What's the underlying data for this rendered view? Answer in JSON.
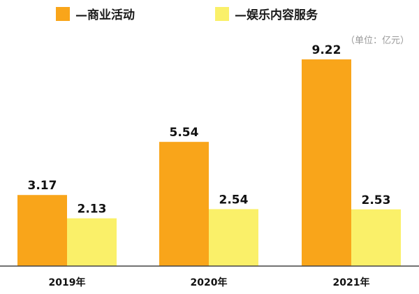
{
  "chart_data": {
    "type": "bar",
    "categories": [
      "2019年",
      "2020年",
      "2021年"
    ],
    "series": [
      {
        "name": "—商业活动",
        "values": [
          3.17,
          5.54,
          9.22
        ],
        "color": "#F9A51A"
      },
      {
        "name": "—娱乐内容服务",
        "values": [
          2.13,
          2.54,
          2.53
        ],
        "color": "#FAF069"
      }
    ],
    "unit": "（单位：亿元）",
    "title": "",
    "xlabel": "",
    "ylabel": "",
    "ylim": [
      0,
      10
    ],
    "grid": false,
    "legend_position": "top-left"
  }
}
